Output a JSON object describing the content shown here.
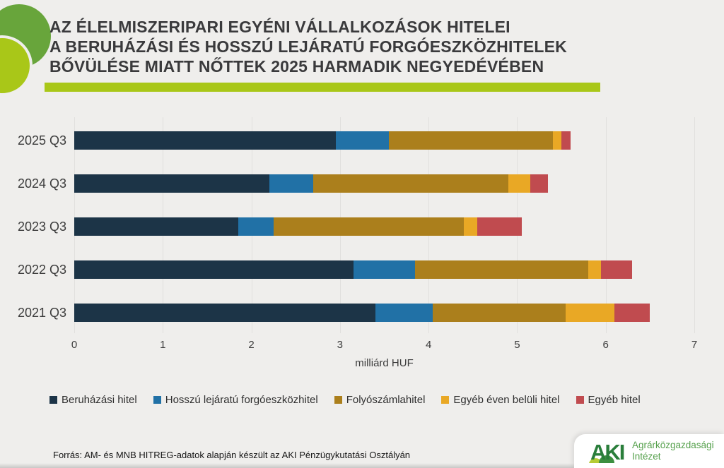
{
  "title": {
    "lines": [
      "AZ ÉLELMISZERIPARI EGYÉNI VÁLLALKOZÁSOK HITELEI",
      "A BERUHÁZÁSI ÉS HOSSZÚ LEJÁRATÚ FORGÓESZKÖZHITELEK",
      "BŐVÜLÉSE MIATT NŐTTEK 2025 HARMADIK NEGYEDÉVÉBEN"
    ]
  },
  "chart_data": {
    "type": "bar",
    "orientation": "horizontal",
    "stacked": true,
    "categories": [
      "2025 Q3",
      "2024 Q3",
      "2023 Q3",
      "2022 Q3",
      "2021 Q3"
    ],
    "series": [
      {
        "name": "Beruházási hitel",
        "color": "#1c3447",
        "values": [
          2.95,
          2.2,
          1.85,
          3.15,
          3.4
        ]
      },
      {
        "name": "Hosszú lejáratú forgóeszközhitel",
        "color": "#2171a6",
        "values": [
          0.6,
          0.5,
          0.4,
          0.7,
          0.65
        ]
      },
      {
        "name": "Folyószámlahitel",
        "color": "#ab7f1c",
        "values": [
          1.85,
          2.2,
          2.15,
          1.95,
          1.5
        ]
      },
      {
        "name": "Egyéb éven belüli hitel",
        "color": "#e9a825",
        "values": [
          0.1,
          0.25,
          0.15,
          0.15,
          0.55
        ]
      },
      {
        "name": "Egyéb hitel",
        "color": "#c04b4f",
        "values": [
          0.1,
          0.2,
          0.5,
          0.35,
          0.4
        ]
      }
    ],
    "xlabel": "milliárd HUF",
    "x_ticks": [
      0,
      1,
      2,
      3,
      4,
      5,
      6,
      7
    ],
    "xlim": [
      0,
      7
    ],
    "grid": true,
    "legend_position": "bottom"
  },
  "footer": {
    "source": "Forrás: AM- és MNB HITREG-adatok alapján készült az AKI Pénzügykutatási Osztályán"
  },
  "logo": {
    "acronym": "AKI",
    "name_line1": "Agrárközgazdasági",
    "name_line2": "Intézet"
  },
  "colors": {
    "background": "#efeeec",
    "accent_lime": "#a9c718",
    "circle_green": "#68a53b",
    "title_text": "#3a3a3c",
    "gridline": "#e1e0de",
    "logo_green": "#2a7e3b"
  }
}
